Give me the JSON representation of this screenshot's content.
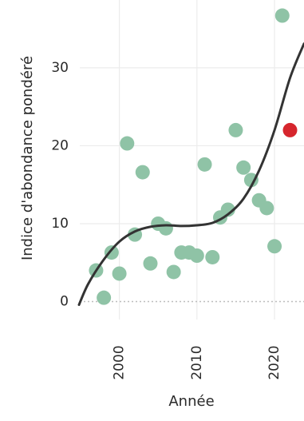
{
  "chart_data": {
    "type": "scatter",
    "xlabel": "Année",
    "ylabel": "Indice d'abondance pondéré",
    "xlim": [
      1994.9,
      2023.8
    ],
    "ylim": [
      -2.3,
      38.7
    ],
    "x_ticks": [
      2000,
      2010,
      2020
    ],
    "y_ticks": [
      0,
      10,
      20,
      30
    ],
    "x_tick_labels": [
      "2000",
      "2010",
      "2020"
    ],
    "y_tick_labels": [
      "0",
      "10",
      "20",
      "30"
    ],
    "grid": true,
    "zero_line": "dotted",
    "series": [
      {
        "values": [
          {
            "x": 1997,
            "y": 4.0
          },
          {
            "x": 1998,
            "y": 0.5
          },
          {
            "x": 1999,
            "y": 6.3
          },
          {
            "x": 2000,
            "y": 3.6
          },
          {
            "x": 2001,
            "y": 20.3
          },
          {
            "x": 2002,
            "y": 8.6
          },
          {
            "x": 2003,
            "y": 16.6
          },
          {
            "x": 2004,
            "y": 4.9
          },
          {
            "x": 2005,
            "y": 10.0
          },
          {
            "x": 2006,
            "y": 9.4
          },
          {
            "x": 2007,
            "y": 3.8
          },
          {
            "x": 2008,
            "y": 6.3
          },
          {
            "x": 2009,
            "y": 6.3
          },
          {
            "x": 2010,
            "y": 5.9
          },
          {
            "x": 2011,
            "y": 17.6
          },
          {
            "x": 2012,
            "y": 5.7
          },
          {
            "x": 2013,
            "y": 10.8
          },
          {
            "x": 2014,
            "y": 11.8
          },
          {
            "x": 2015,
            "y": 22.0
          },
          {
            "x": 2016,
            "y": 17.2
          },
          {
            "x": 2017,
            "y": 15.6
          },
          {
            "x": 2018,
            "y": 13.0
          },
          {
            "x": 2019,
            "y": 12.0
          },
          {
            "x": 2020,
            "y": 7.1
          },
          {
            "x": 2021,
            "y": 36.7
          }
        ]
      },
      {
        "values": [
          {
            "x": 2022,
            "y": 22.0
          }
        ]
      }
    ],
    "trend_line": {
      "x": [
        1994.8,
        1996,
        1998,
        2000,
        2002,
        2004,
        2006,
        2008,
        2010,
        2012,
        2014,
        2016,
        2018,
        2020,
        2022,
        2023.8
      ],
      "y": [
        -0.4,
        2.3,
        5.4,
        7.7,
        9.0,
        9.6,
        9.8,
        9.7,
        9.8,
        10.1,
        11.2,
        13.2,
        16.8,
        22.0,
        28.7,
        33.1
      ]
    },
    "colors": {
      "points": "#8fc3a6",
      "highlight": "#d6262d",
      "trend": "#333333",
      "grid": "#ececec",
      "zero_line": "#bdbdbd",
      "text": "#2a2a2a"
    }
  }
}
